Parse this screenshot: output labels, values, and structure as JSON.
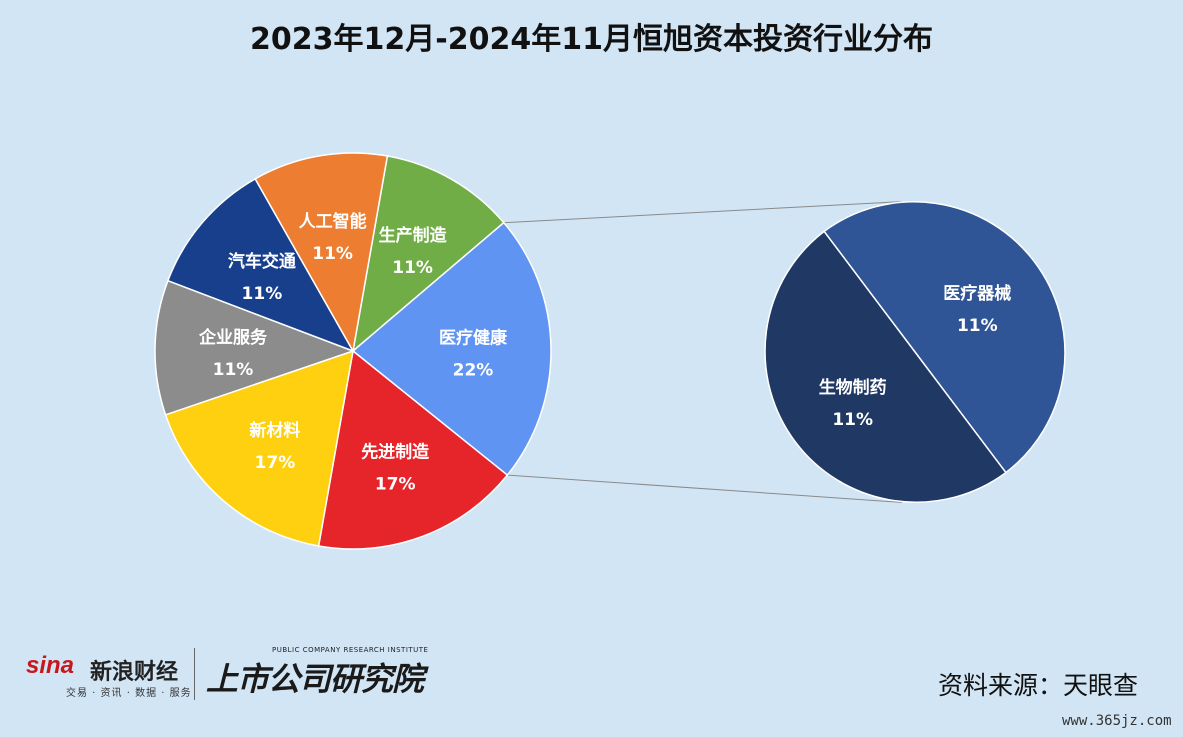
{
  "chart_data": {
    "type": "pie",
    "title": "2023年12月-2024年11月恒旭资本投资行业分布",
    "main_pie": {
      "slices": [
        {
          "label": "生产制造",
          "value": 11,
          "display": "11%",
          "color": "#70ad47"
        },
        {
          "label": "医疗健康",
          "value": 22,
          "display": "22%",
          "color": "#6094f2"
        },
        {
          "label": "先进制造",
          "value": 17,
          "display": "17%",
          "color": "#e5252a"
        },
        {
          "label": "新材料",
          "value": 17,
          "display": "17%",
          "color": "#ffd00f"
        },
        {
          "label": "企业服务",
          "value": 11,
          "display": "11%",
          "color": "#8c8c8c"
        },
        {
          "label": "汽车交通",
          "value": 11,
          "display": "11%",
          "color": "#173f8c"
        },
        {
          "label": "人工智能",
          "value": 11,
          "display": "11%",
          "color": "#ed7d31"
        }
      ]
    },
    "sub_pie": {
      "parent": "医疗健康",
      "slices": [
        {
          "label": "医疗器械",
          "value": 11,
          "display": "11%",
          "color": "#2f5597"
        },
        {
          "label": "生物制药",
          "value": 11,
          "display": "11%",
          "color": "#203864"
        }
      ]
    }
  },
  "footer": {
    "source": "资料来源：天眼查",
    "watermark": "www.365jz.com"
  },
  "logo": {
    "brand": "sina",
    "name": "新浪财经",
    "tagline": "交易 · 资讯 · 数据 · 服务",
    "institute_en": "PUBLIC COMPANY RESEARCH INSTITUTE",
    "institute_name": "上市公司研究院"
  }
}
